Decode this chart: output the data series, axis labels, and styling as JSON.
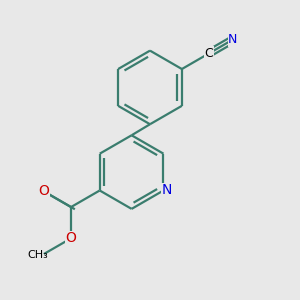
{
  "background_color": "#e8e8e8",
  "bond_color": "#3a7d6e",
  "N_color": "#0000e0",
  "O_color": "#cc0000",
  "bond_lw": 1.6,
  "figsize": [
    3.0,
    3.0
  ],
  "dpi": 100,
  "xlim": [
    -2.5,
    4.5
  ],
  "ylim": [
    -4.5,
    3.5
  ]
}
